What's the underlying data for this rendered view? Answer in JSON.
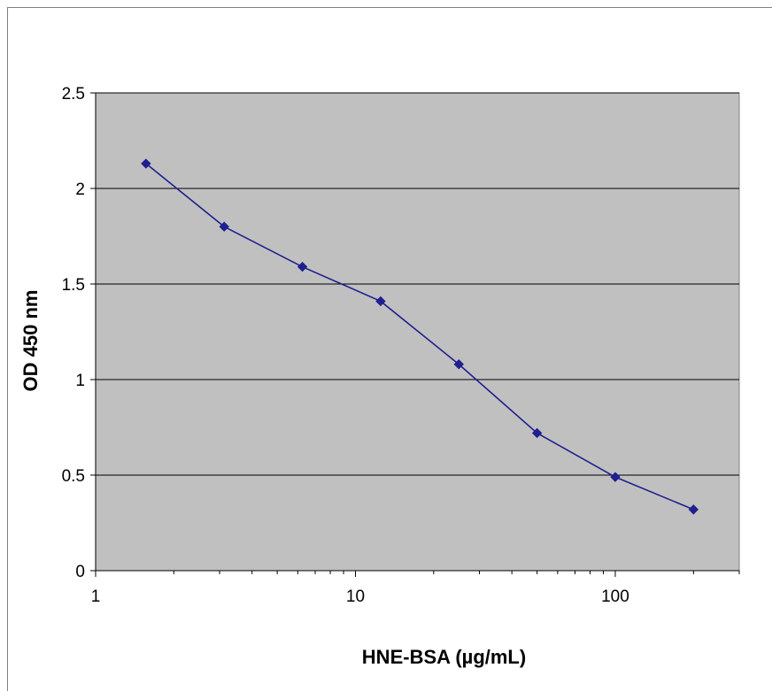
{
  "chart_data": {
    "type": "line",
    "xlabel": "HNE-BSA (µg/mL)",
    "ylabel": "OD 450 nm",
    "x_scale": "log",
    "xlim": [
      1,
      300
    ],
    "ylim": [
      0,
      2.5
    ],
    "x_ticks": [
      1,
      10,
      100
    ],
    "x_tick_labels": [
      "1",
      "10",
      "100"
    ],
    "y_ticks": [
      0,
      0.5,
      1,
      1.5,
      2,
      2.5
    ],
    "y_tick_labels": [
      "0",
      "0.5",
      "1",
      "1.5",
      "2",
      "2.5"
    ],
    "grid": true,
    "legend": "none",
    "series": [
      {
        "x": [
          1.5625,
          3.125,
          6.25,
          12.5,
          25,
          50,
          100,
          200
        ],
        "y": [
          2.13,
          1.8,
          1.59,
          1.41,
          1.08,
          0.72,
          0.49,
          0.32
        ],
        "color": "#1f1f8f",
        "marker": "diamond"
      }
    ],
    "plot_background": "#c0c0c0",
    "gridline_color": "#000000"
  }
}
